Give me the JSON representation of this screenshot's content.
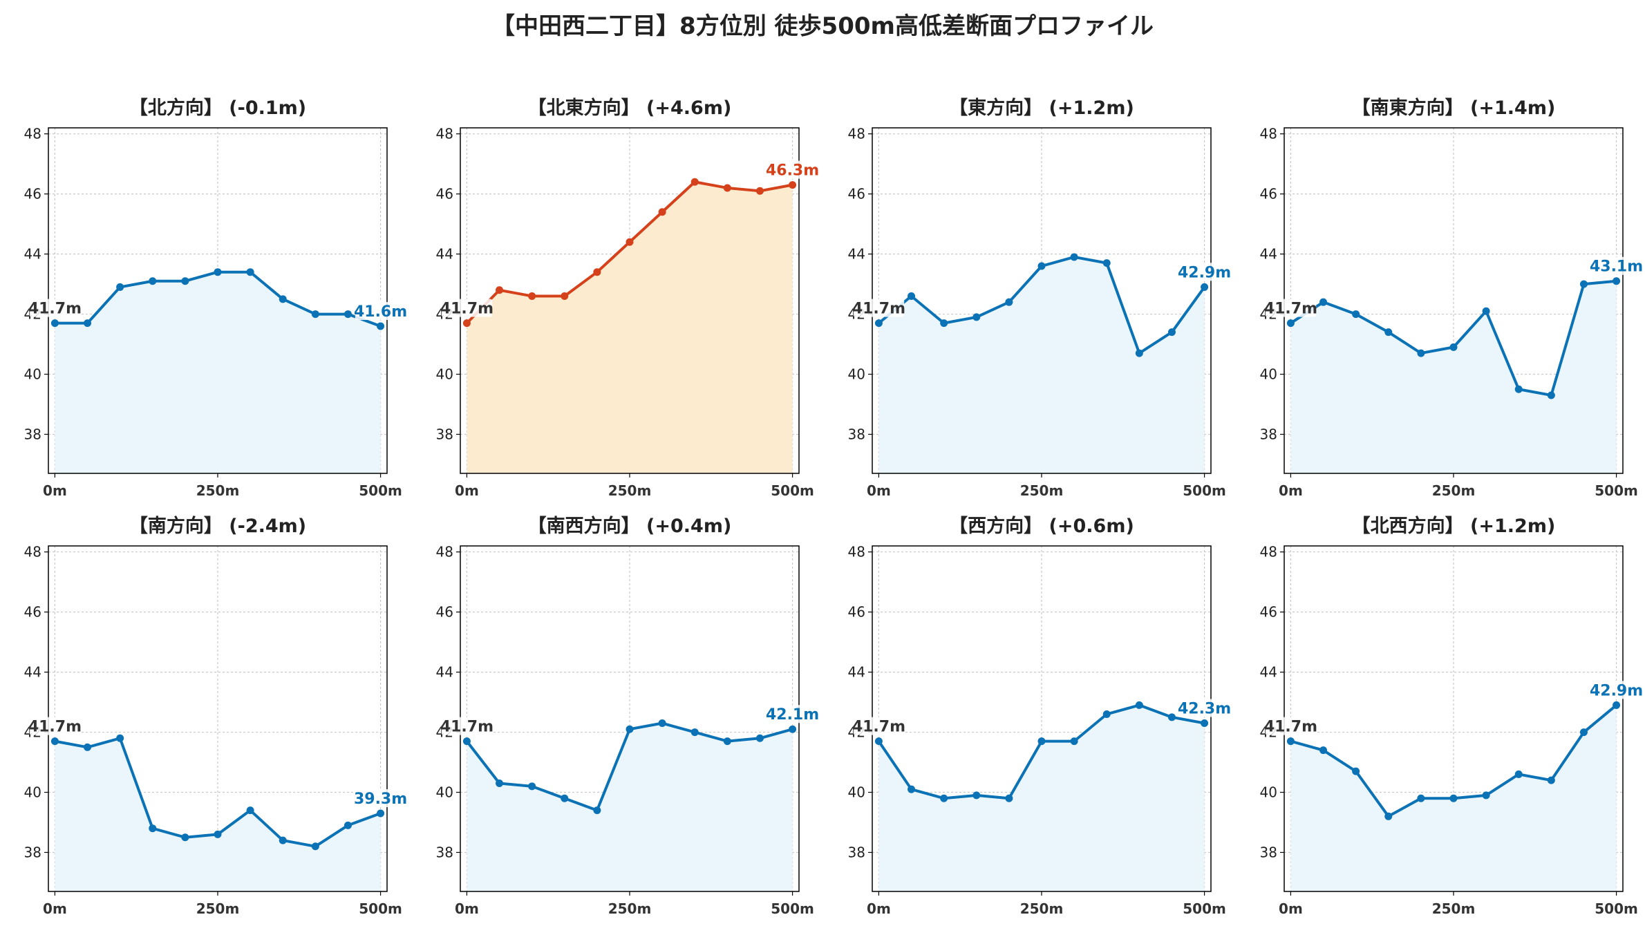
{
  "title": "【中田西二丁目】8方位別 徒歩500m高低差断面プロファイル",
  "colors": {
    "normal_line": "#0a72b5",
    "normal_fill": "#eaf6fc",
    "highlight_line": "#d4411a",
    "highlight_fill": "#fdebd0",
    "start_label": "#333333",
    "grid": "#c8c8c8"
  },
  "chart_data": [
    {
      "type": "area",
      "title": "【北方向】 (-0.1m)",
      "x": [
        0,
        50,
        100,
        150,
        200,
        250,
        300,
        350,
        400,
        450,
        500
      ],
      "y": [
        41.7,
        41.7,
        42.9,
        43.1,
        43.1,
        43.4,
        43.4,
        42.5,
        42.0,
        42.0,
        41.6
      ],
      "start_label": "41.7m",
      "end_label": "41.6m",
      "highlight": false,
      "xticks": [
        "0m",
        "250m",
        "500m"
      ],
      "yticks": [
        38,
        40,
        42,
        44,
        46,
        48
      ],
      "ylim": [
        36.7,
        48.2
      ],
      "grid": true
    },
    {
      "type": "area",
      "title": "【北東方向】 (+4.6m)",
      "x": [
        0,
        50,
        100,
        150,
        200,
        250,
        300,
        350,
        400,
        450,
        500
      ],
      "y": [
        41.7,
        42.8,
        42.6,
        42.6,
        43.4,
        44.4,
        45.4,
        46.4,
        46.2,
        46.1,
        46.3
      ],
      "start_label": "41.7m",
      "end_label": "46.3m",
      "highlight": true,
      "xticks": [
        "0m",
        "250m",
        "500m"
      ],
      "yticks": [
        38,
        40,
        42,
        44,
        46,
        48
      ],
      "ylim": [
        36.7,
        48.2
      ],
      "grid": true
    },
    {
      "type": "area",
      "title": "【東方向】 (+1.2m)",
      "x": [
        0,
        50,
        100,
        150,
        200,
        250,
        300,
        350,
        400,
        450,
        500
      ],
      "y": [
        41.7,
        42.6,
        41.7,
        41.9,
        42.4,
        43.6,
        43.9,
        43.7,
        40.7,
        41.4,
        42.9
      ],
      "start_label": "41.7m",
      "end_label": "42.9m",
      "highlight": false,
      "xticks": [
        "0m",
        "250m",
        "500m"
      ],
      "yticks": [
        38,
        40,
        42,
        44,
        46,
        48
      ],
      "ylim": [
        36.7,
        48.2
      ],
      "grid": true
    },
    {
      "type": "area",
      "title": "【南東方向】 (+1.4m)",
      "x": [
        0,
        50,
        100,
        150,
        200,
        250,
        300,
        350,
        400,
        450,
        500
      ],
      "y": [
        41.7,
        42.4,
        42.0,
        41.4,
        40.7,
        40.9,
        42.1,
        39.5,
        39.3,
        43.0,
        43.1
      ],
      "start_label": "41.7m",
      "end_label": "43.1m",
      "highlight": false,
      "xticks": [
        "0m",
        "250m",
        "500m"
      ],
      "yticks": [
        38,
        40,
        42,
        44,
        46,
        48
      ],
      "ylim": [
        36.7,
        48.2
      ],
      "grid": true
    },
    {
      "type": "area",
      "title": "【南方向】 (-2.4m)",
      "x": [
        0,
        50,
        100,
        150,
        200,
        250,
        300,
        350,
        400,
        450,
        500
      ],
      "y": [
        41.7,
        41.5,
        41.8,
        38.8,
        38.5,
        38.6,
        39.4,
        38.4,
        38.2,
        38.9,
        39.3
      ],
      "start_label": "41.7m",
      "end_label": "39.3m",
      "highlight": false,
      "xticks": [
        "0m",
        "250m",
        "500m"
      ],
      "yticks": [
        38,
        40,
        42,
        44,
        46,
        48
      ],
      "ylim": [
        36.7,
        48.2
      ],
      "grid": true
    },
    {
      "type": "area",
      "title": "【南西方向】 (+0.4m)",
      "x": [
        0,
        50,
        100,
        150,
        200,
        250,
        300,
        350,
        400,
        450,
        500
      ],
      "y": [
        41.7,
        40.3,
        40.2,
        39.8,
        39.4,
        42.1,
        42.3,
        42.0,
        41.7,
        41.8,
        42.1
      ],
      "start_label": "41.7m",
      "end_label": "42.1m",
      "highlight": false,
      "xticks": [
        "0m",
        "250m",
        "500m"
      ],
      "yticks": [
        38,
        40,
        42,
        44,
        46,
        48
      ],
      "ylim": [
        36.7,
        48.2
      ],
      "grid": true
    },
    {
      "type": "area",
      "title": "【西方向】 (+0.6m)",
      "x": [
        0,
        50,
        100,
        150,
        200,
        250,
        300,
        350,
        400,
        450,
        500
      ],
      "y": [
        41.7,
        40.1,
        39.8,
        39.9,
        39.8,
        41.7,
        41.7,
        42.6,
        42.9,
        42.5,
        42.3
      ],
      "start_label": "41.7m",
      "end_label": "42.3m",
      "highlight": false,
      "xticks": [
        "0m",
        "250m",
        "500m"
      ],
      "yticks": [
        38,
        40,
        42,
        44,
        46,
        48
      ],
      "ylim": [
        36.7,
        48.2
      ],
      "grid": true
    },
    {
      "type": "area",
      "title": "【北西方向】 (+1.2m)",
      "x": [
        0,
        50,
        100,
        150,
        200,
        250,
        300,
        350,
        400,
        450,
        500
      ],
      "y": [
        41.7,
        41.4,
        40.7,
        39.2,
        39.8,
        39.8,
        39.9,
        40.6,
        40.4,
        42.0,
        42.9
      ],
      "start_label": "41.7m",
      "end_label": "42.9m",
      "highlight": false,
      "xticks": [
        "0m",
        "250m",
        "500m"
      ],
      "yticks": [
        38,
        40,
        42,
        44,
        46,
        48
      ],
      "ylim": [
        36.7,
        48.2
      ],
      "grid": true
    }
  ]
}
